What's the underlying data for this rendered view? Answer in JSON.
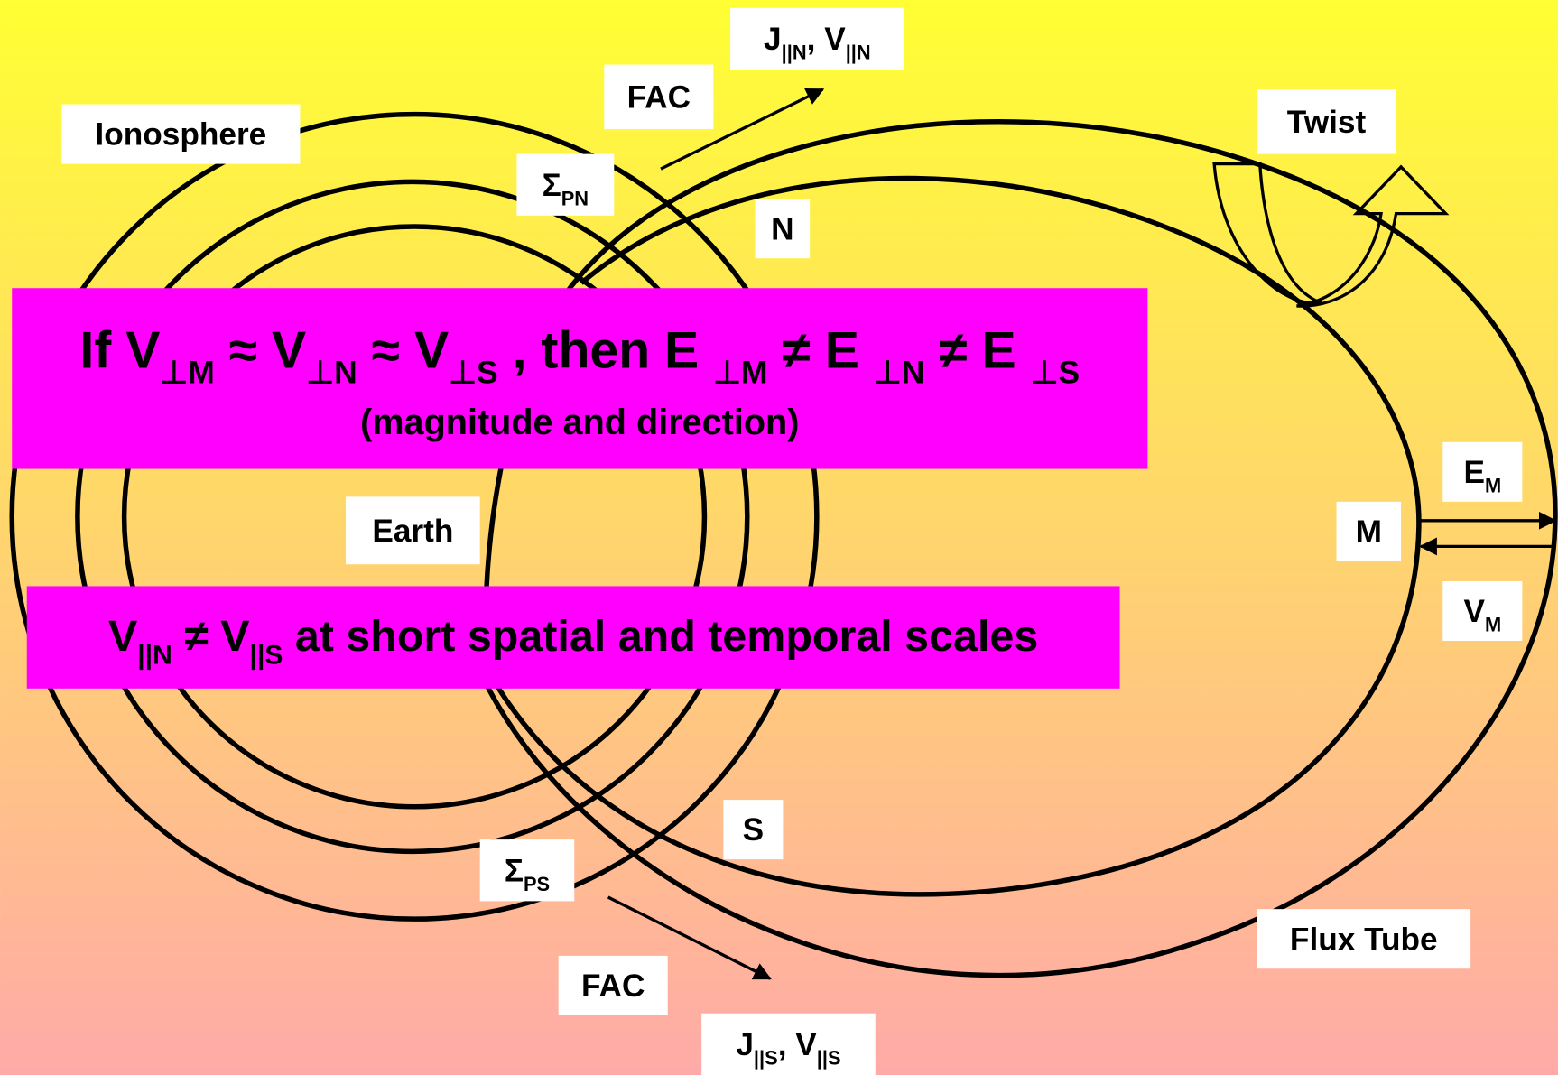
{
  "labels": [
    {
      "segments": [
        {
          "text": "Ionosphere"
        }
      ]
    },
    {
      "segments": [
        {
          "text": "FAC"
        }
      ]
    },
    {
      "segments": [
        {
          "text": "J"
        },
        {
          "text": "||N",
          "sub": true
        },
        {
          "text": ", V"
        },
        {
          "text": "||N",
          "sub": true
        }
      ]
    },
    {
      "segments": [
        {
          "text": "Σ"
        },
        {
          "text": "PN",
          "sub": true
        }
      ]
    },
    {
      "segments": [
        {
          "text": "N"
        }
      ]
    },
    {
      "segments": [
        {
          "text": "Twist"
        }
      ]
    },
    {
      "segments": [
        {
          "text": "Earth"
        }
      ]
    },
    {
      "segments": [
        {
          "text": "M"
        }
      ]
    },
    {
      "segments": [
        {
          "text": "E"
        },
        {
          "text": "M",
          "sub": true
        }
      ]
    },
    {
      "segments": [
        {
          "text": "V"
        },
        {
          "text": "M",
          "sub": true
        }
      ]
    },
    {
      "segments": [
        {
          "text": "S"
        }
      ]
    },
    {
      "segments": [
        {
          "text": "Σ"
        },
        {
          "text": "PS",
          "sub": true
        }
      ]
    },
    {
      "segments": [
        {
          "text": "Flux Tube"
        }
      ]
    },
    {
      "segments": [
        {
          "text": "FAC"
        }
      ]
    },
    {
      "segments": [
        {
          "text": "J"
        },
        {
          "text": "||S",
          "sub": true
        },
        {
          "text": ", V"
        },
        {
          "text": "||S",
          "sub": true
        }
      ]
    }
  ],
  "banners": [
    {
      "lines": [
        {
          "segments": [
            {
              "text": "If V"
            },
            {
              "text": "⊥M",
              "sub": true
            },
            {
              "text": " ≈ V"
            },
            {
              "text": "⊥N",
              "sub": true
            },
            {
              "text": " ≈ V"
            },
            {
              "text": "⊥S",
              "sub": true
            },
            {
              "text": " , then E "
            },
            {
              "text": "⊥M",
              "sub": true
            },
            {
              "text": " ≠ E "
            },
            {
              "text": "⊥N",
              "sub": true
            },
            {
              "text": " ≠ E "
            },
            {
              "text": "⊥S",
              "sub": true
            }
          ]
        },
        {
          "segments": [
            {
              "text": "(magnitude and direction)"
            }
          ]
        }
      ]
    },
    {
      "lines": [
        {
          "segments": [
            {
              "text": "V"
            },
            {
              "text": "||N",
              "sub": true
            },
            {
              "text": " ≠ V"
            },
            {
              "text": "||S",
              "sub": true
            },
            {
              "text": " at short spatial and temporal scales"
            }
          ]
        }
      ]
    }
  ]
}
